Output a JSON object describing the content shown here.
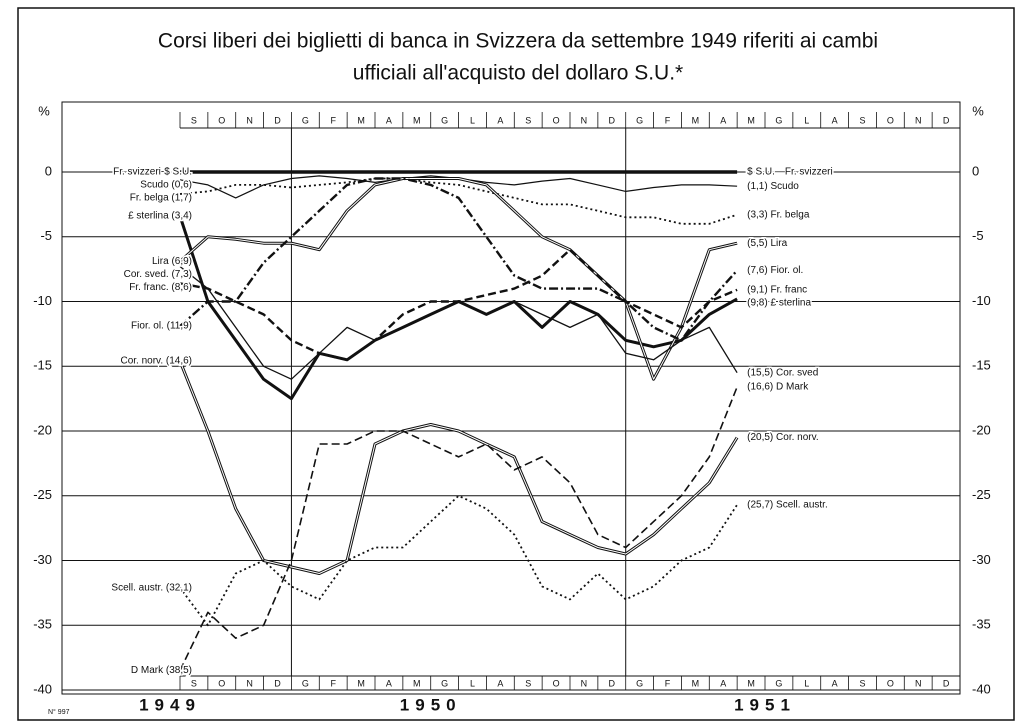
{
  "chart_data": {
    "type": "line",
    "title": "Corsi liberi dei biglietti di banca in Svizzera da settembre 1949 riferiti ai cambi",
    "subtitle": "ufficiali all'acquisto del dollaro S.U.*",
    "y_unit": "%",
    "categories": [
      "S",
      "O",
      "N",
      "D",
      "G",
      "F",
      "M",
      "A",
      "M",
      "G",
      "L",
      "A",
      "S",
      "O",
      "N",
      "D",
      "G",
      "F",
      "M",
      "A",
      "M",
      "G",
      "L",
      "A",
      "S",
      "O",
      "N",
      "D"
    ],
    "years": [
      {
        "label": "1949",
        "month": 0
      },
      {
        "label": "1950",
        "month": 4
      },
      {
        "label": "1951",
        "month": 16
      }
    ],
    "ylim": [
      -40,
      0
    ],
    "yticks": [
      0,
      -5,
      -10,
      -15,
      -20,
      -25,
      -30,
      -35,
      -40
    ],
    "grid": true,
    "footnote": "N° 997",
    "series": [
      {
        "name": "Fr. svizzeri-$ S.U.",
        "end_label": "$ S.U.—Fr. svizzeri",
        "style": "solid",
        "width": 3.5,
        "color": "#111",
        "values": [
          0,
          0,
          0,
          0,
          0,
          0,
          0,
          0,
          0,
          0,
          0,
          0,
          0,
          0,
          0,
          0,
          0,
          0,
          0,
          0,
          0,
          null,
          null,
          null,
          null,
          null,
          null,
          null
        ]
      },
      {
        "name": "Scudo (0,6)",
        "end_label": "(1,1) Scudo",
        "style": "solid",
        "width": 1.2,
        "color": "#111",
        "values": [
          -0.6,
          -1,
          -2,
          -1,
          -0.5,
          -0.3,
          -0.5,
          -0.8,
          -0.5,
          -0.3,
          -0.5,
          -0.8,
          -1,
          -0.7,
          -0.5,
          -1,
          -1.5,
          -1.2,
          -1,
          -1,
          -1.1,
          null,
          null,
          null,
          null,
          null,
          null,
          null
        ]
      },
      {
        "name": "Fr. belga (1,7)",
        "end_label": "(3,3) Fr. belga",
        "style": "dotted",
        "width": 1.8,
        "color": "#111",
        "values": [
          -1.7,
          -1.5,
          -1,
          -1,
          -1.2,
          -1,
          -0.8,
          -0.5,
          -0.5,
          -0.8,
          -1,
          -1.5,
          -2,
          -2.5,
          -2.5,
          -3,
          -3.5,
          -3.5,
          -4,
          -4,
          -3.3,
          null,
          null,
          null,
          null,
          null,
          null,
          null
        ]
      },
      {
        "name": "£ sterlina (3,4)",
        "end_label": "(9,8) £ sterlina",
        "style": "solid",
        "width": 3,
        "color": "#111",
        "values": [
          -3.4,
          -10,
          -13,
          -16,
          -17.5,
          -14,
          -14.5,
          -13,
          -12,
          -11,
          -10,
          -11,
          -10,
          -12,
          -10,
          -11,
          -13,
          -13.5,
          -13,
          -11,
          -9.8,
          null,
          null,
          null,
          null,
          null,
          null,
          null
        ]
      },
      {
        "name": "Lira (6,9)",
        "end_label": "(5,5) Lira",
        "style": "double",
        "width": 3,
        "color": "#111",
        "values": [
          -6.9,
          -5,
          -5.2,
          -5.5,
          -5.5,
          -6,
          -3,
          -1,
          -0.5,
          -0.5,
          -0.5,
          -1,
          -3,
          -5,
          -6,
          -8,
          -10,
          -16,
          -12,
          -6,
          -5.5,
          null,
          null,
          null,
          null,
          null,
          null,
          null
        ]
      },
      {
        "name": "Cor. sved. (7,3)",
        "end_label": "(15,5) Cor. sved",
        "style": "solid",
        "width": 1.3,
        "color": "#111",
        "values": [
          -7.3,
          -9,
          -12,
          -15,
          -16,
          -14,
          -12,
          -13,
          -12,
          -11,
          -10,
          -10,
          -10,
          -11,
          -12,
          -11,
          -14,
          -14.5,
          -13,
          -12,
          -15.5,
          null,
          null,
          null,
          null,
          null,
          null,
          null
        ]
      },
      {
        "name": "Fr. franc. (8,6)",
        "end_label": "(9,1) Fr. franc",
        "style": "dashed",
        "width": 2.4,
        "color": "#111",
        "values": [
          -8.6,
          -9,
          -10,
          -11,
          -13,
          -14,
          -14.5,
          -13,
          -11,
          -10,
          -10,
          -9.5,
          -9,
          -8,
          -6,
          -8,
          -10,
          -11,
          -12,
          -10,
          -9.1,
          null,
          null,
          null,
          null,
          null,
          null,
          null
        ]
      },
      {
        "name": "Fior. ol. (11,9)",
        "end_label": "(7,6) Fior. ol.",
        "style": "dashdot",
        "width": 2.4,
        "color": "#111",
        "values": [
          -11.9,
          -10,
          -10,
          -7,
          -5,
          -3,
          -1,
          -0.5,
          -0.5,
          -1,
          -2,
          -5,
          -8,
          -9,
          -9,
          -9,
          -10,
          -12,
          -13,
          -10,
          -7.6,
          null,
          null,
          null,
          null,
          null,
          null,
          null
        ]
      },
      {
        "name": "Cor. norv. (14,6)",
        "end_label": "(20,5) Cor. norv.",
        "style": "double",
        "width": 3,
        "color": "#111",
        "values": [
          -14.6,
          -20,
          -26,
          -30,
          -30.5,
          -31,
          -30,
          -21,
          -20,
          -19.5,
          -20,
          -21,
          -22,
          -27,
          -28,
          -29,
          -29.5,
          -28,
          -26,
          -24,
          -20.5,
          null,
          null,
          null,
          null,
          null,
          null,
          null
        ]
      },
      {
        "name": "Scell. austr. (32,1)",
        "end_label": "(25,7) Scell. austr.",
        "style": "dotted",
        "width": 1.8,
        "color": "#111",
        "values": [
          -32.1,
          -35,
          -31,
          -30,
          -32,
          -33,
          -30,
          -29,
          -29,
          -27,
          -25,
          -26,
          -28,
          -32,
          -33,
          -31,
          -33,
          -32,
          -30,
          -29,
          -25.7,
          null,
          null,
          null,
          null,
          null,
          null,
          null
        ]
      },
      {
        "name": "D Mark (38,5)",
        "end_label": "(16,6) D Mark",
        "style": "dashed",
        "width": 1.6,
        "color": "#111",
        "values": [
          -38.5,
          -34,
          -36,
          -35,
          -30,
          -21,
          -21,
          -20,
          -20,
          -21,
          -22,
          -21,
          -23,
          -22,
          -24,
          -28,
          -29,
          -27,
          -25,
          -22,
          -16.6,
          null,
          null,
          null,
          null,
          null,
          null,
          null
        ]
      }
    ]
  }
}
